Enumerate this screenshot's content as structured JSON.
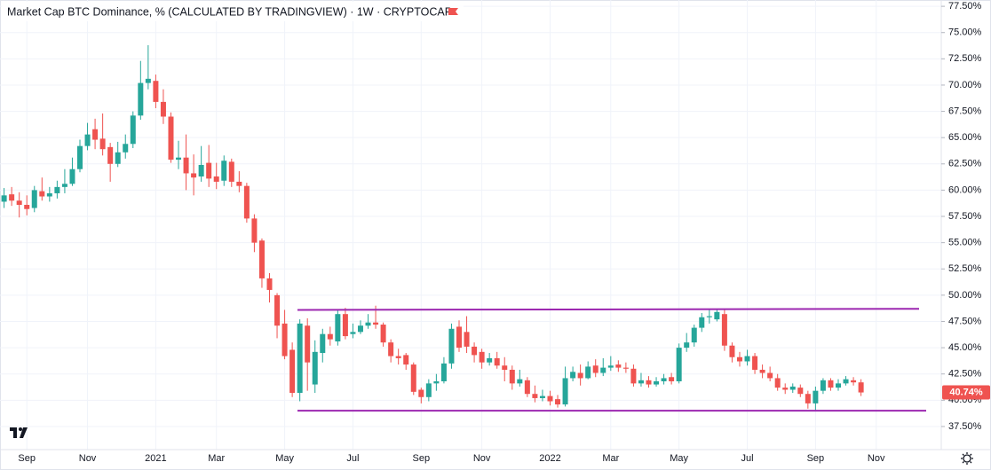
{
  "chart_data": {
    "type": "candlestick",
    "title": "Market Cap BTC Dominance, % (CALCULATED BY TRADINGVIEW) · 1W · CRYPTOCAP",
    "categories": [
      null,
      null,
      null,
      "Sep",
      null,
      null,
      null,
      null,
      null,
      null,
      null,
      "Nov",
      null,
      null,
      null,
      null,
      null,
      null,
      null,
      null,
      "2021",
      null,
      null,
      null,
      null,
      null,
      null,
      null,
      "Mar",
      null,
      null,
      null,
      null,
      null,
      null,
      null,
      null,
      "May",
      null,
      null,
      null,
      null,
      null,
      null,
      null,
      null,
      "Jul",
      null,
      null,
      null,
      null,
      null,
      null,
      null,
      null,
      "Sep",
      null,
      null,
      null,
      null,
      null,
      null,
      null,
      "Nov",
      null,
      null,
      null,
      null,
      null,
      null,
      null,
      null,
      "2022",
      null,
      null,
      null,
      null,
      null,
      null,
      null,
      "Mar",
      null,
      null,
      null,
      null,
      null,
      null,
      null,
      null,
      "May",
      null,
      null,
      null,
      null,
      null,
      null,
      null,
      null,
      "Jul",
      null,
      null,
      null,
      null,
      null,
      null,
      null,
      null,
      "Sep",
      null,
      null,
      null,
      null,
      null,
      null,
      null,
      "Nov"
    ],
    "open": [
      58.9,
      59.6,
      59.0,
      58.6,
      58.3,
      59.9,
      59.4,
      59.7,
      60.3,
      60.6,
      62.0,
      64.2,
      65.8,
      64.9,
      64.1,
      62.5,
      63.6,
      64.4,
      67.1,
      70.2,
      70.4,
      68.4,
      67.0,
      62.9,
      63.1,
      61.6,
      61.3,
      62.6,
      61.3,
      60.9,
      62.7,
      60.8,
      60.4,
      57.3,
      55.2,
      51.6,
      50.0,
      47.3,
      44.8,
      40.7,
      47.1,
      41.5,
      44.5,
      46.3,
      45.6,
      48.2,
      46.3,
      46.5,
      47.1,
      47.4,
      47.2,
      45.5,
      44.2,
      44.3,
      43.4,
      41.0,
      40.3,
      41.6,
      41.8,
      43.5,
      47.0,
      46.5,
      45.1,
      44.6,
      43.6,
      44.0,
      43.3,
      42.9,
      41.6,
      41.9,
      40.6,
      40.2,
      40.4,
      40.1,
      39.6,
      42.1,
      42.6,
      42.1,
      43.3,
      42.6,
      43.1,
      43.4,
      43.1,
      43.0,
      41.6,
      41.9,
      41.5,
      41.8,
      42.2,
      41.8,
      45.0,
      45.5,
      46.9,
      47.9,
      47.7,
      48.2,
      45.2,
      44.1,
      43.7,
      44.2,
      42.9,
      42.6,
      42.1,
      41.2,
      41.0,
      41.2,
      40.6,
      39.7,
      40.9,
      41.9,
      41.2,
      41.6,
      41.9,
      41.7,
      null,
      null
    ],
    "high": [
      60.2,
      60.3,
      59.8,
      59.5,
      60.4,
      61.2,
      60.3,
      60.9,
      62.0,
      63.1,
      64.8,
      66.4,
      66.8,
      67.3,
      64.5,
      64.6,
      65.3,
      67.5,
      72.3,
      73.8,
      71.0,
      69.6,
      67.4,
      64.7,
      65.3,
      63.4,
      64.2,
      64.3,
      62.6,
      63.3,
      63.0,
      61.8,
      60.7,
      57.7,
      55.4,
      52.1,
      50.2,
      48.6,
      45.5,
      47.7,
      47.8,
      45.7,
      46.8,
      47.0,
      48.6,
      48.8,
      47.3,
      47.6,
      48.2,
      49.0,
      47.4,
      45.8,
      44.9,
      44.5,
      43.6,
      41.2,
      42.0,
      42.5,
      44.1,
      47.3,
      47.6,
      48.0,
      45.5,
      44.9,
      44.5,
      44.6,
      44.1,
      43.3,
      42.9,
      42.2,
      41.4,
      41.0,
      40.9,
      40.5,
      43.2,
      43.2,
      43.4,
      43.7,
      43.9,
      44.0,
      44.2,
      43.8,
      43.6,
      43.4,
      42.6,
      42.3,
      42.2,
      42.5,
      42.6,
      45.4,
      46.4,
      47.2,
      48.3,
      48.6,
      48.7,
      48.6,
      45.5,
      44.6,
      44.8,
      44.5,
      43.4,
      43.2,
      42.5,
      41.6,
      41.6,
      41.5,
      40.9,
      41.3,
      42.1,
      42.1,
      42.0,
      42.3,
      42.2,
      42.0,
      null,
      null
    ],
    "low": [
      58.3,
      58.5,
      57.4,
      57.6,
      57.9,
      59.0,
      58.9,
      59.2,
      59.7,
      60.4,
      61.7,
      63.8,
      63.9,
      63.3,
      60.8,
      62.2,
      63.0,
      64.0,
      66.7,
      69.6,
      67.8,
      66.3,
      62.6,
      62.0,
      60.0,
      59.5,
      60.8,
      60.3,
      60.1,
      60.4,
      60.3,
      59.8,
      56.9,
      54.1,
      50.7,
      49.3,
      45.9,
      43.9,
      40.3,
      39.9,
      40.9,
      40.7,
      43.6,
      45.2,
      45.2,
      45.8,
      45.9,
      46.3,
      46.8,
      46.8,
      45.1,
      43.6,
      43.4,
      42.9,
      40.5,
      39.7,
      39.9,
      40.9,
      41.6,
      43.0,
      44.6,
      44.5,
      43.6,
      43.0,
      43.3,
      43.0,
      41.8,
      41.0,
      41.3,
      40.3,
      39.8,
      39.9,
      39.5,
      39.3,
      39.4,
      41.8,
      41.4,
      42.0,
      42.2,
      42.3,
      42.8,
      42.7,
      42.6,
      41.3,
      41.3,
      41.2,
      41.3,
      41.5,
      41.5,
      41.6,
      44.6,
      45.1,
      46.5,
      47.3,
      47.5,
      44.7,
      43.6,
      43.2,
      43.3,
      42.5,
      42.1,
      41.8,
      40.9,
      40.6,
      40.7,
      40.3,
      39.2,
      39.0,
      40.6,
      40.9,
      40.9,
      41.4,
      41.4,
      40.4,
      null,
      null
    ],
    "close": [
      59.5,
      59.0,
      58.6,
      58.2,
      60.0,
      59.4,
      59.7,
      60.3,
      60.6,
      62.0,
      64.2,
      65.3,
      64.8,
      63.9,
      62.5,
      63.6,
      64.4,
      67.1,
      70.2,
      70.6,
      68.4,
      67.0,
      62.9,
      63.1,
      61.6,
      61.2,
      62.4,
      61.1,
      60.8,
      62.8,
      60.8,
      60.4,
      57.3,
      55.0,
      51.6,
      50.5,
      47.1,
      44.2,
      40.7,
      47.3,
      43.6,
      44.6,
      46.3,
      45.8,
      48.2,
      46.1,
      46.5,
      47.1,
      47.4,
      47.2,
      45.5,
      44.2,
      44.0,
      43.4,
      40.8,
      40.3,
      41.6,
      41.8,
      43.5,
      46.8,
      45.0,
      45.1,
      44.3,
      43.6,
      44.0,
      43.3,
      42.9,
      41.6,
      42.0,
      40.6,
      40.2,
      40.4,
      39.9,
      39.6,
      42.1,
      42.7,
      42.1,
      43.2,
      42.6,
      43.1,
      43.3,
      43.1,
      43.0,
      41.6,
      41.9,
      41.5,
      41.8,
      42.1,
      41.8,
      45.0,
      45.5,
      46.9,
      47.9,
      48.0,
      48.4,
      45.2,
      44.1,
      43.7,
      44.2,
      42.9,
      42.6,
      42.1,
      41.2,
      41.0,
      41.3,
      40.6,
      39.7,
      40.9,
      41.9,
      41.2,
      41.6,
      42.0,
      41.7,
      40.74,
      null,
      null
    ],
    "up_color": "#26a69a",
    "down_color": "#ef5350",
    "last_price": {
      "value": 40.74,
      "label": "40.74%"
    },
    "trend_lines": [
      {
        "color": "#9c27b0",
        "values": [
          48.6,
          48.7
        ]
      },
      {
        "color": "#9c27b0",
        "values": [
          39.0,
          39.0
        ]
      }
    ],
    "ylim": [
      35.3,
      78.1
    ],
    "yticks": [
      {
        "value": 37.5,
        "label": "37.50%"
      },
      {
        "value": 40,
        "label": "40.00%"
      },
      {
        "value": 42.5,
        "label": "42.50%"
      },
      {
        "value": 45,
        "label": "45.00%"
      },
      {
        "value": 47.5,
        "label": "47.50%"
      },
      {
        "value": 50,
        "label": "50.00%"
      },
      {
        "value": 52.5,
        "label": "52.50%"
      },
      {
        "value": 55,
        "label": "55.00%"
      },
      {
        "value": 57.5,
        "label": "57.50%"
      },
      {
        "value": 60,
        "label": "60.00%"
      },
      {
        "value": 62.5,
        "label": "62.50%"
      },
      {
        "value": 65,
        "label": "65.00%"
      },
      {
        "value": 67.5,
        "label": "67.50%"
      },
      {
        "value": 70,
        "label": "70.00%"
      },
      {
        "value": 72.5,
        "label": "72.50%"
      },
      {
        "value": 75,
        "label": "75.00%"
      },
      {
        "value": 77.5,
        "label": "77.50%"
      }
    ],
    "grid": true
  }
}
